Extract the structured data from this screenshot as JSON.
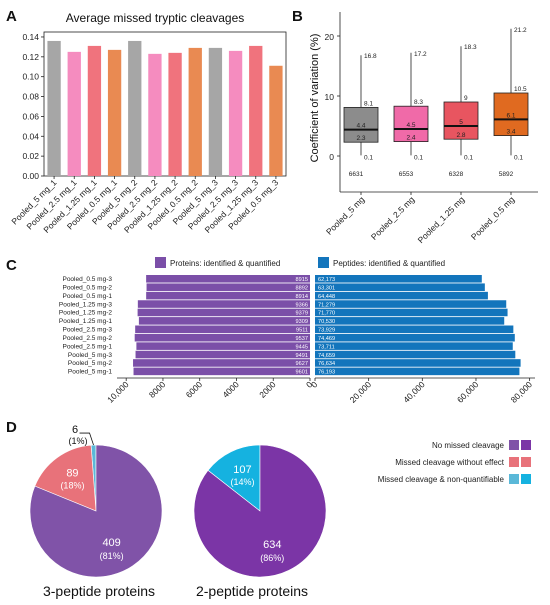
{
  "panels": {
    "A": "A",
    "B": "B",
    "C": "C",
    "D": "D"
  },
  "chart_data": [
    {
      "id": "A",
      "type": "bar",
      "title": "Average missed tryptic cleavages",
      "categories": [
        "Pooled_5 mg_1",
        "Pooled_2.5 mg_1",
        "Pooled_1.25 mg_1",
        "Pooled_0.5 mg_1",
        "Pooled_5 mg_2",
        "Pooled_2.5 mg_2",
        "Pooled_1.25 mg_2",
        "Pooled_0.5 mg_2",
        "Pooled_5 mg_3",
        "Pooled_2.5 mg_3",
        "Pooled_1.25 mg_3",
        "Pooled_0.5 mg_3"
      ],
      "values": [
        0.136,
        0.125,
        0.131,
        0.127,
        0.136,
        0.123,
        0.124,
        0.129,
        0.129,
        0.126,
        0.131,
        0.111
      ],
      "bar_colors": [
        "#a6a6a6",
        "#f58cbf",
        "#f0737d",
        "#e98a52",
        "#a6a6a6",
        "#f58cbf",
        "#f0737d",
        "#e98a52",
        "#a6a6a6",
        "#f58cbf",
        "#f0737d",
        "#e98a52"
      ],
      "yticks": [
        "0.00",
        "0.02",
        "0.04",
        "0.06",
        "0.08",
        "0.10",
        "0.12",
        "0.14"
      ],
      "ylim": [
        0,
        0.145
      ]
    },
    {
      "id": "B",
      "type": "box",
      "ylabel": "Coefficient of variation (%)",
      "categories": [
        "Pooled_5 mg",
        "Pooled_2.5 mg",
        "Pooled_1.25 mg",
        "Pooled_0.5 mg"
      ],
      "colors": [
        "#8c8c8c",
        "#f06aa8",
        "#e85560",
        "#e06a20"
      ],
      "boxes": [
        {
          "min": 0.1,
          "q1": 2.3,
          "median": 4.4,
          "q3": 8.1,
          "max": 16.8,
          "n": "6631"
        },
        {
          "min": 0.1,
          "q1": 2.4,
          "median": 4.5,
          "q3": 8.3,
          "max": 17.2,
          "n": "6553"
        },
        {
          "min": 0.1,
          "q1": 2.8,
          "median": 5,
          "q3": 9,
          "max": 18.3,
          "n": "6328"
        },
        {
          "min": 0.1,
          "q1": 3.4,
          "median": 6.1,
          "q3": 10.5,
          "max": 21.2,
          "n": "5892"
        }
      ],
      "box_labels": [
        {
          "min": "0.1",
          "q1": "2.3",
          "median": "4.4",
          "q3": "8.1",
          "max": "16.8"
        },
        {
          "min": "0.1",
          "q1": "2.4",
          "median": "4.5",
          "q3": "8.3",
          "max": "17.2"
        },
        {
          "min": "0.1",
          "q1": "2.8",
          "median": "5",
          "q3": "9",
          "max": "18.3"
        },
        {
          "min": "0.1",
          "q1": "3.4",
          "median": "6.1",
          "q3": "10.5",
          "max": "21.2"
        }
      ],
      "yticks": [
        "0",
        "10",
        "20"
      ],
      "ylim": [
        -6,
        24
      ]
    },
    {
      "id": "C",
      "type": "bar",
      "orientation": "diverging-horizontal",
      "legend": [
        "Proteins: identified & quantified",
        "Peptides: identified & quantified"
      ],
      "colors": [
        "#7b4fa8",
        "#1375bc"
      ],
      "categories": [
        "Pooled_0.5 mg-3",
        "Pooled_0.5 mg-2",
        "Pooled_0.5 mg-1",
        "Pooled_1.25 mg-3",
        "Pooled_1.25 mg-2",
        "Pooled_1.25 mg-1",
        "Pooled_2.5 mg-3",
        "Pooled_2.5 mg-2",
        "Pooled_2.5 mg-1",
        "Pooled_5 mg-3",
        "Pooled_5 mg-2",
        "Pooled_5 mg-1"
      ],
      "series": [
        {
          "values": [
            8915,
            8892,
            8914,
            9366,
            9379,
            9309,
            9511,
            9537,
            9445,
            9491,
            9627,
            9601
          ],
          "labels": [
            "8915",
            "8892",
            "8914",
            "9366",
            "9379",
            "9309",
            "9511",
            "9537",
            "9445",
            "9491",
            "9627",
            "9601"
          ]
        },
        {
          "values": [
            62173,
            63301,
            64448,
            71279,
            71770,
            70530,
            73929,
            74469,
            73711,
            74659,
            76634,
            76193
          ],
          "labels": [
            "62,173",
            "63,301",
            "64,448",
            "71,279",
            "71,770",
            "70,530",
            "73,929",
            "74,469",
            "73,711",
            "74,659",
            "76,634",
            "76,193"
          ]
        }
      ],
      "left_ticks": [
        "10,000",
        "8000",
        "6000",
        "4000",
        "2000",
        "0"
      ],
      "right_ticks": [
        "0",
        "20,000",
        "40,000",
        "60,000",
        "80,000"
      ],
      "left_lim": [
        0,
        10500
      ],
      "right_lim": [
        0,
        82000
      ]
    },
    {
      "id": "D",
      "type": "pie",
      "pies": [
        {
          "title": "3-peptide proteins",
          "slices": [
            {
              "label": "409",
              "pct": "(81%)",
              "value": 409
            },
            {
              "label": "89",
              "pct": "(18%)",
              "value": 89
            },
            {
              "label": "6",
              "pct": "(1%)",
              "value": 6
            }
          ]
        },
        {
          "title": "2-peptide proteins",
          "slices": [
            {
              "label": "634",
              "pct": "(86%)",
              "value": 634
            },
            {
              "label": "107",
              "pct": "(14%)",
              "value": 107
            }
          ]
        }
      ],
      "pie_colors": [
        [
          "#8053a8",
          "#e8727a",
          "#5ab8d8"
        ],
        [
          "#7b35a6",
          "#15b2e0"
        ]
      ],
      "legend": [
        "No missed cleavage",
        "Missed cleavage without effect",
        "Missed cleavage & non-quantifiable"
      ],
      "legend_colors": [
        [
          "#8053a8",
          "#7b35a6"
        ],
        [
          "#e8727a",
          "#e8727a"
        ],
        [
          "#5ab8d8",
          "#15b2e0"
        ]
      ]
    }
  ]
}
